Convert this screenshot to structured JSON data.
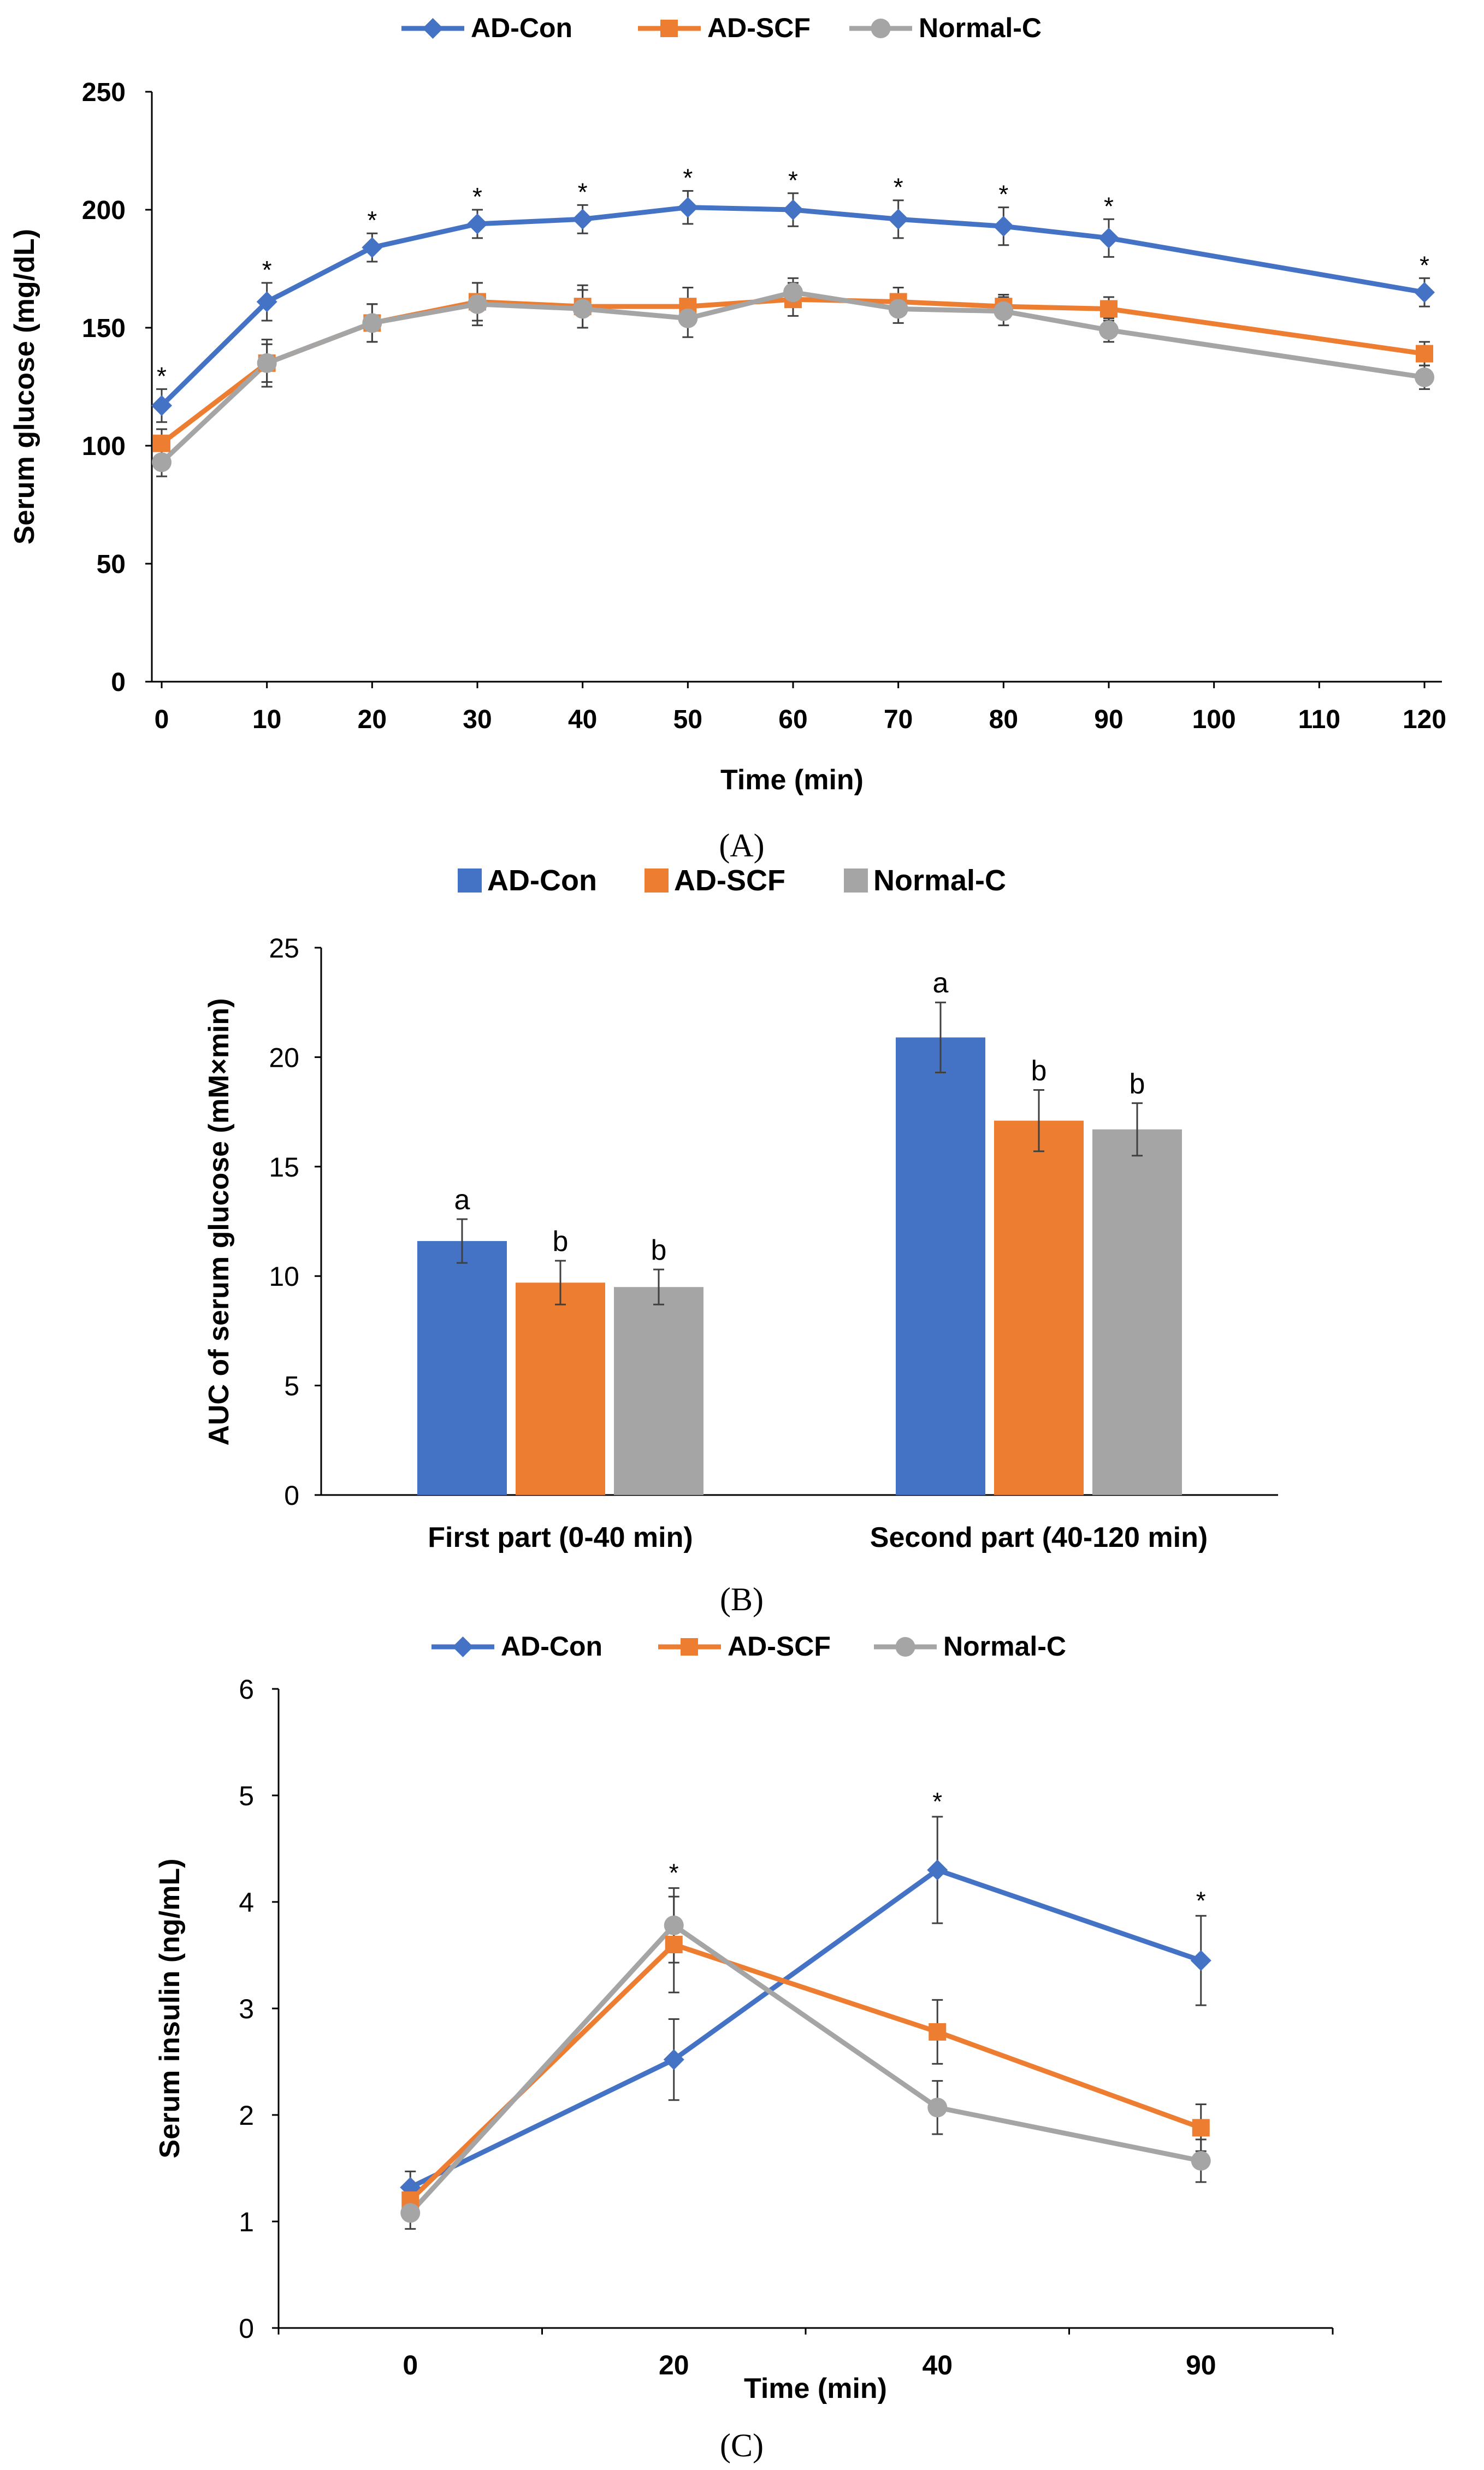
{
  "colors": {
    "ad_con": "#4472C4",
    "ad_scf": "#ED7D31",
    "normal_c": "#A5A5A5",
    "axis": "#000000",
    "error": "#404040"
  },
  "chart_data": [
    {
      "id": "A",
      "type": "line",
      "panel_label": "(A)",
      "xlabel": "Time (min)",
      "ylabel": "Serum glucose (mg/dL)",
      "ylim": [
        0,
        250
      ],
      "yticks": [
        0,
        50,
        100,
        150,
        200,
        250
      ],
      "xlim": [
        0,
        120
      ],
      "xticks": [
        0,
        10,
        20,
        30,
        40,
        50,
        60,
        70,
        80,
        90,
        100,
        110,
        120
      ],
      "x": [
        0,
        10,
        20,
        30,
        40,
        50,
        60,
        70,
        80,
        90,
        120
      ],
      "legend_position": "top",
      "significance_marker": "*",
      "significance_x": [
        0,
        10,
        20,
        30,
        40,
        50,
        60,
        70,
        80,
        90,
        120
      ],
      "series": [
        {
          "name": "AD-Con",
          "color_key": "ad_con",
          "marker": "diamond",
          "values": [
            117,
            161,
            184,
            194,
            196,
            201,
            200,
            196,
            193,
            188,
            165
          ],
          "errors": [
            7,
            8,
            6,
            6,
            6,
            7,
            7,
            8,
            8,
            8,
            6
          ]
        },
        {
          "name": "AD-SCF",
          "color_key": "ad_scf",
          "marker": "square",
          "values": [
            101,
            135,
            152,
            161,
            159,
            159,
            162,
            161,
            159,
            158,
            139
          ],
          "errors": [
            6,
            8,
            8,
            8,
            9,
            8,
            7,
            6,
            5,
            5,
            5
          ]
        },
        {
          "name": "Normal-C",
          "color_key": "normal_c",
          "marker": "circle",
          "values": [
            93,
            135,
            152,
            160,
            158,
            154,
            165,
            158,
            157,
            149,
            129
          ],
          "errors": [
            6,
            10,
            8,
            9,
            8,
            8,
            6,
            6,
            6,
            5,
            5
          ]
        }
      ]
    },
    {
      "id": "B",
      "type": "bar",
      "panel_label": "(B)",
      "xlabel": "",
      "ylabel": "AUC of serum glucose (mM×min)",
      "ylim": [
        0,
        25
      ],
      "yticks": [
        0,
        5,
        10,
        15,
        20,
        25
      ],
      "categories": [
        "First part (0-40 min)",
        "Second part (40-120 min)"
      ],
      "legend_position": "top",
      "series": [
        {
          "name": "AD-Con",
          "color_key": "ad_con",
          "values": [
            11.6,
            20.9
          ],
          "errors": [
            1.0,
            1.6
          ],
          "labels": [
            "a",
            "a"
          ]
        },
        {
          "name": "AD-SCF",
          "color_key": "ad_scf",
          "values": [
            9.7,
            17.1
          ],
          "errors": [
            1.0,
            1.4
          ],
          "labels": [
            "b",
            "b"
          ]
        },
        {
          "name": "Normal-C",
          "color_key": "normal_c",
          "values": [
            9.5,
            16.7
          ],
          "errors": [
            0.8,
            1.2
          ],
          "labels": [
            "b",
            "b"
          ]
        }
      ]
    },
    {
      "id": "C",
      "type": "line",
      "panel_label": "(C)",
      "xlabel": "Time (min)",
      "ylabel": "Serum insulin (ng/mL)",
      "ylim": [
        0,
        6
      ],
      "yticks": [
        0,
        1,
        2,
        3,
        4,
        5,
        6
      ],
      "categories": [
        "0",
        "20",
        "40",
        "90"
      ],
      "legend_position": "top",
      "significance_marker": "*",
      "significance_index": [
        1,
        2,
        3
      ],
      "series": [
        {
          "name": "AD-Con",
          "color_key": "ad_con",
          "marker": "diamond",
          "values": [
            1.32,
            2.52,
            4.3,
            3.45
          ],
          "errors": [
            0.15,
            0.38,
            0.5,
            0.42
          ]
        },
        {
          "name": "AD-SCF",
          "color_key": "ad_scf",
          "marker": "square",
          "values": [
            1.2,
            3.6,
            2.78,
            1.88
          ],
          "errors": [
            0.15,
            0.45,
            0.3,
            0.22
          ]
        },
        {
          "name": "Normal-C",
          "color_key": "normal_c",
          "marker": "circle",
          "values": [
            1.08,
            3.78,
            2.07,
            1.57
          ],
          "errors": [
            0.15,
            0.35,
            0.25,
            0.2
          ]
        }
      ]
    }
  ]
}
